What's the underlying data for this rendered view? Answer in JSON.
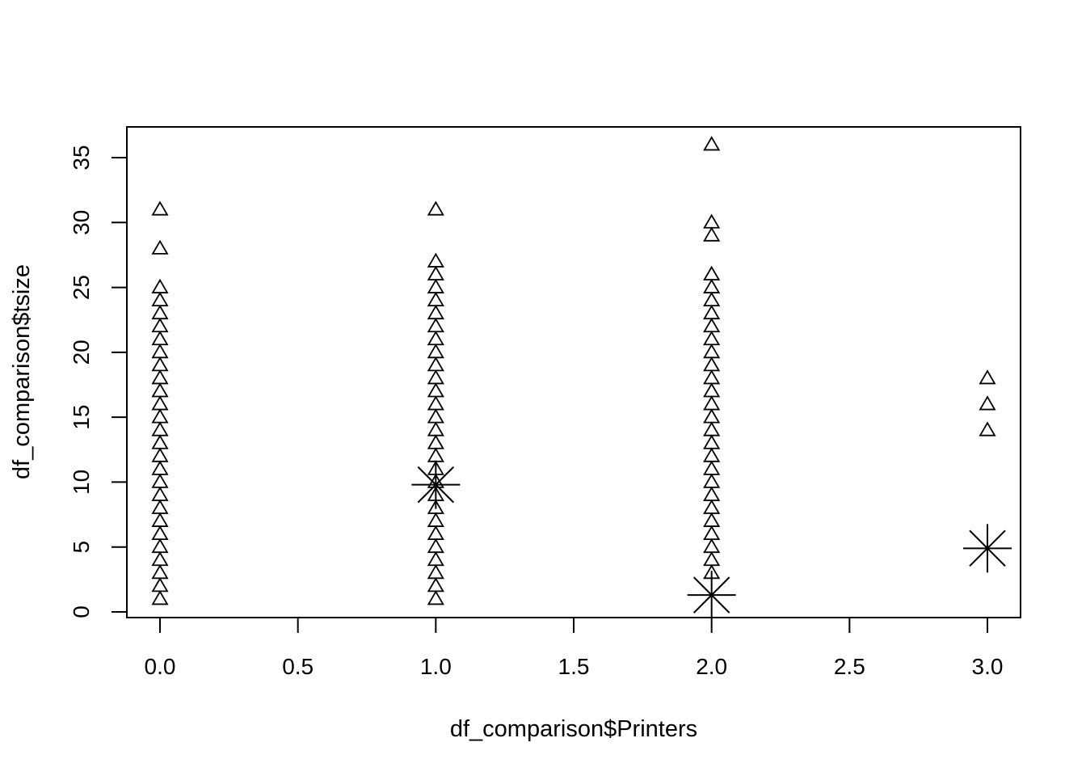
{
  "chart_data": {
    "type": "scatter",
    "xlabel": "df_comparison$Printers",
    "ylabel": "df_comparison$tsize",
    "xlim": [
      0,
      3
    ],
    "ylim": [
      0,
      36
    ],
    "x_ticks": [
      "0.0",
      "0.5",
      "1.0",
      "1.5",
      "2.0",
      "2.5",
      "3.0"
    ],
    "y_ticks": [
      "0",
      "5",
      "10",
      "15",
      "20",
      "25",
      "30",
      "35"
    ],
    "grid": false,
    "series": [
      {
        "marker": "triangle",
        "points": [
          [
            0,
            1
          ],
          [
            0,
            2
          ],
          [
            0,
            3
          ],
          [
            0,
            4
          ],
          [
            0,
            5
          ],
          [
            0,
            6
          ],
          [
            0,
            7
          ],
          [
            0,
            8
          ],
          [
            0,
            9
          ],
          [
            0,
            10
          ],
          [
            0,
            11
          ],
          [
            0,
            12
          ],
          [
            0,
            13
          ],
          [
            0,
            14
          ],
          [
            0,
            15
          ],
          [
            0,
            16
          ],
          [
            0,
            17
          ],
          [
            0,
            18
          ],
          [
            0,
            19
          ],
          [
            0,
            20
          ],
          [
            0,
            21
          ],
          [
            0,
            22
          ],
          [
            0,
            23
          ],
          [
            0,
            24
          ],
          [
            0,
            25
          ],
          [
            0,
            28
          ],
          [
            0,
            31
          ],
          [
            1,
            1
          ],
          [
            1,
            2
          ],
          [
            1,
            3
          ],
          [
            1,
            4
          ],
          [
            1,
            5
          ],
          [
            1,
            6
          ],
          [
            1,
            7
          ],
          [
            1,
            8
          ],
          [
            1,
            9
          ],
          [
            1,
            10
          ],
          [
            1,
            11
          ],
          [
            1,
            12
          ],
          [
            1,
            13
          ],
          [
            1,
            14
          ],
          [
            1,
            15
          ],
          [
            1,
            16
          ],
          [
            1,
            17
          ],
          [
            1,
            18
          ],
          [
            1,
            19
          ],
          [
            1,
            20
          ],
          [
            1,
            21
          ],
          [
            1,
            22
          ],
          [
            1,
            23
          ],
          [
            1,
            24
          ],
          [
            1,
            25
          ],
          [
            1,
            26
          ],
          [
            1,
            27
          ],
          [
            1,
            31
          ],
          [
            2,
            3
          ],
          [
            2,
            4
          ],
          [
            2,
            5
          ],
          [
            2,
            6
          ],
          [
            2,
            7
          ],
          [
            2,
            8
          ],
          [
            2,
            9
          ],
          [
            2,
            10
          ],
          [
            2,
            11
          ],
          [
            2,
            12
          ],
          [
            2,
            13
          ],
          [
            2,
            14
          ],
          [
            2,
            15
          ],
          [
            2,
            16
          ],
          [
            2,
            17
          ],
          [
            2,
            18
          ],
          [
            2,
            19
          ],
          [
            2,
            20
          ],
          [
            2,
            21
          ],
          [
            2,
            22
          ],
          [
            2,
            23
          ],
          [
            2,
            24
          ],
          [
            2,
            25
          ],
          [
            2,
            26
          ],
          [
            2,
            29
          ],
          [
            2,
            30
          ],
          [
            2,
            36
          ],
          [
            3,
            14
          ],
          [
            3,
            16
          ],
          [
            3,
            18
          ]
        ]
      },
      {
        "marker": "asterisk",
        "points": [
          [
            1,
            9.8
          ],
          [
            2,
            1.3
          ],
          [
            3,
            4.9
          ]
        ]
      }
    ]
  }
}
